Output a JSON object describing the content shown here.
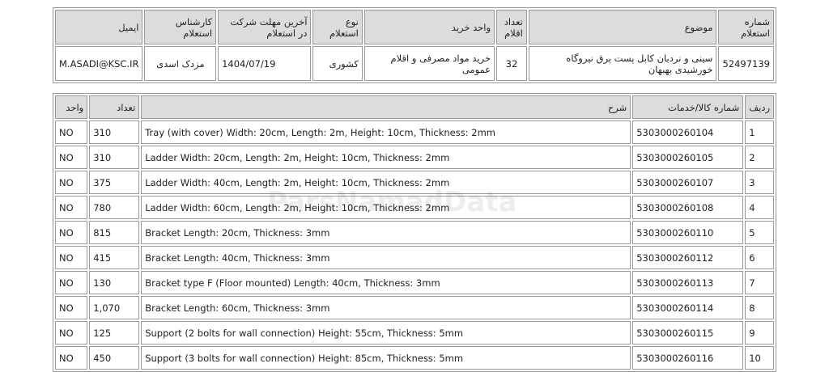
{
  "inquiry": {
    "headers": [
      "شماره استعلام",
      "موضوع",
      "تعداد اقلام",
      "واحد خرید",
      "نوع استعلام",
      "آخرین مهلت شرکت در استعلام",
      "کارشناس استعلام",
      "ایمیل"
    ],
    "row": {
      "number": "52497139",
      "subject": "سینی و نردبان کابل پست برق نیروگاه خورشیدی بهبهان",
      "item_count": "32",
      "purchase_unit": "خرید مواد مصرفی و اقلام عمومی",
      "type": "کشوری",
      "deadline": "1404/07/19",
      "expert": "مزدک اسدی",
      "email": "M.ASADI@KSC.IR"
    }
  },
  "items": {
    "headers": [
      "ردیف",
      "شماره کالا/خدمات",
      "شرح",
      "تعداد",
      "واحد"
    ],
    "rows": [
      {
        "n": "1",
        "code": "5303000260104",
        "desc": "Tray (with cover) Width: 20cm, Length: 2m, Height: 10cm, Thickness: 2mm",
        "qty": "310",
        "unit": "NO"
      },
      {
        "n": "2",
        "code": "5303000260105",
        "desc": "Ladder Width: 20cm, Length: 2m, Height: 10cm, Thickness: 2mm",
        "qty": "310",
        "unit": "NO"
      },
      {
        "n": "3",
        "code": "5303000260107",
        "desc": "Ladder Width: 40cm, Length: 2m, Height: 10cm, Thickness: 2mm",
        "qty": "375",
        "unit": "NO"
      },
      {
        "n": "4",
        "code": "5303000260108",
        "desc": "Ladder Width: 60cm, Length: 2m, Height: 10cm, Thickness: 2mm",
        "qty": "780",
        "unit": "NO"
      },
      {
        "n": "5",
        "code": "5303000260110",
        "desc": "Bracket Length: 20cm, Thickness: 3mm",
        "qty": "815",
        "unit": "NO"
      },
      {
        "n": "6",
        "code": "5303000260112",
        "desc": "Bracket Length: 40cm, Thickness: 3mm",
        "qty": "415",
        "unit": "NO"
      },
      {
        "n": "7",
        "code": "5303000260113",
        "desc": "Bracket type F (Floor mounted) Length: 40cm, Thickness: 3mm",
        "qty": "130",
        "unit": "NO"
      },
      {
        "n": "8",
        "code": "5303000260114",
        "desc": "Bracket Length: 60cm, Thickness: 3mm",
        "qty": "1,070",
        "unit": "NO"
      },
      {
        "n": "9",
        "code": "5303000260115",
        "desc": "Support (2 bolts for wall connection) Height: 55cm, Thickness: 5mm",
        "qty": "125",
        "unit": "NO"
      },
      {
        "n": "10",
        "code": "5303000260116",
        "desc": "Support (3 bolts for wall connection) Height: 85cm, Thickness: 5mm",
        "qty": "450",
        "unit": "NO"
      }
    ]
  },
  "watermark": "ParsNamadData"
}
